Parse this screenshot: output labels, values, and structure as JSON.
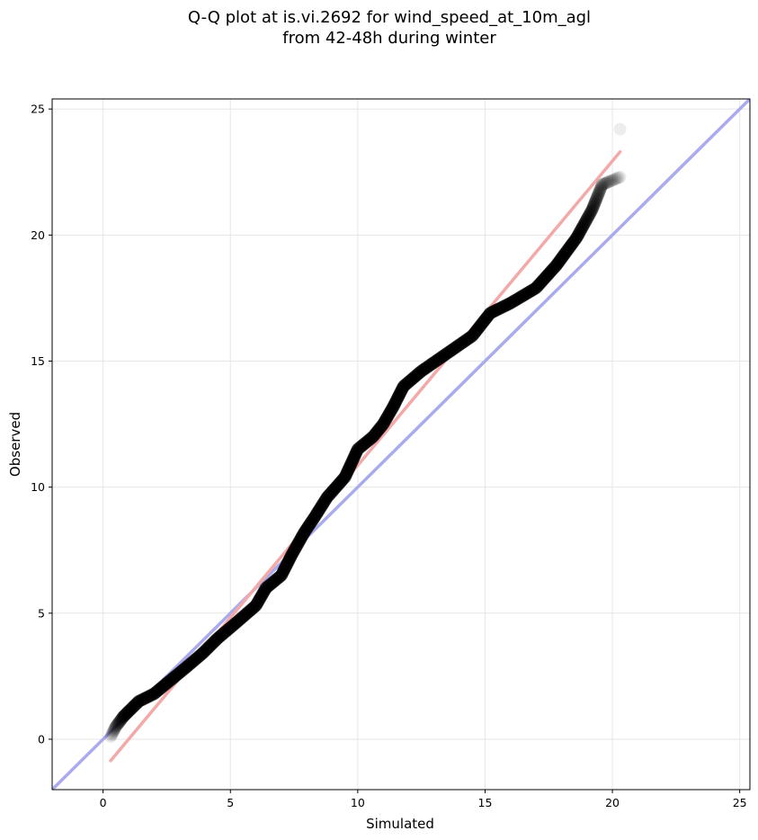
{
  "chart_data": {
    "type": "scatter",
    "title_lines": [
      "Q-Q plot at is.vi.2692 for wind_speed_at_10m_agl",
      "from 42-48h during winter"
    ],
    "xlabel": "Simulated",
    "ylabel": "Observed",
    "xlim": [
      -2,
      25.4
    ],
    "ylim": [
      -2,
      25.4
    ],
    "xticks": [
      0,
      5,
      10,
      15,
      20,
      25
    ],
    "yticks": [
      0,
      5,
      10,
      15,
      20,
      25
    ],
    "grid": true,
    "reference_line": {
      "name": "1:1 line",
      "color": "#aaaaee",
      "from": [
        -2,
        -2
      ],
      "to": [
        25.4,
        25.4
      ]
    },
    "fit_line": {
      "name": "fit",
      "color": "#f4a9a9",
      "from": [
        0.3,
        -0.85
      ],
      "to": [
        20.3,
        23.3
      ]
    },
    "points_color": "#000000",
    "qq_knots": [
      [
        0.3,
        0.1
      ],
      [
        0.5,
        0.5
      ],
      [
        0.8,
        0.9
      ],
      [
        1.1,
        1.2
      ],
      [
        1.4,
        1.5
      ],
      [
        2.0,
        1.8
      ],
      [
        2.6,
        2.3
      ],
      [
        3.2,
        2.8
      ],
      [
        3.9,
        3.4
      ],
      [
        4.5,
        4.0
      ],
      [
        5.2,
        4.6
      ],
      [
        6.0,
        5.3
      ],
      [
        6.4,
        6.0
      ],
      [
        7.0,
        6.5
      ],
      [
        7.4,
        7.3
      ],
      [
        7.9,
        8.2
      ],
      [
        8.3,
        8.8
      ],
      [
        8.8,
        9.6
      ],
      [
        9.5,
        10.4
      ],
      [
        10.0,
        11.5
      ],
      [
        10.6,
        12.0
      ],
      [
        11.0,
        12.5
      ],
      [
        11.4,
        13.2
      ],
      [
        11.8,
        14.0
      ],
      [
        12.5,
        14.6
      ],
      [
        13.5,
        15.3
      ],
      [
        14.5,
        16.0
      ],
      [
        15.2,
        16.9
      ],
      [
        16.0,
        17.3
      ],
      [
        17.0,
        17.9
      ],
      [
        17.8,
        18.8
      ],
      [
        18.6,
        19.9
      ],
      [
        19.2,
        21.0
      ],
      [
        19.6,
        22.0
      ],
      [
        20.3,
        22.3
      ],
      [
        20.3,
        24.2
      ]
    ]
  }
}
